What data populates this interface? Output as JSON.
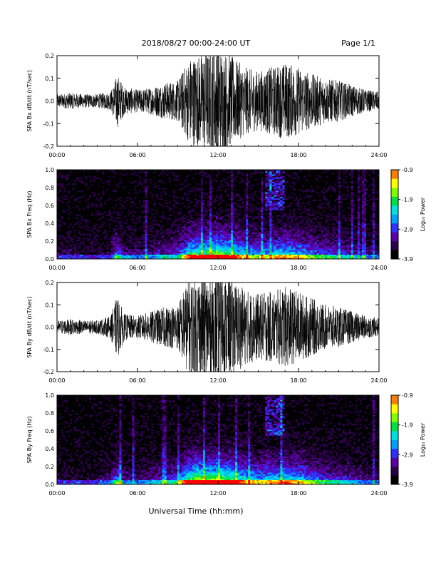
{
  "header": {
    "date_range": "2018/08/27  00:00-24:00 UT",
    "page": "Page 1/1"
  },
  "footer": {
    "xlabel": "Universal Time (hh:mm)"
  },
  "colors": {
    "trace": "#000000",
    "colormap": [
      "#000000",
      "#2a0048",
      "#5a00a6",
      "#3030ff",
      "#00a0ff",
      "#00e0e0",
      "#00e040",
      "#80ff00",
      "#ffff00",
      "#ff8000",
      "#ff0000"
    ]
  },
  "chart_data": [
    {
      "type": "line",
      "id": "bx-timeseries",
      "ylabel": "SPA Bx dB/dt (nT/sec)",
      "x_ticks": [
        "00:00",
        "06:00",
        "12:00",
        "18:00",
        "24:00"
      ],
      "xlim_hours": [
        0,
        24
      ],
      "ylim": [
        -0.2,
        0.2
      ],
      "y_ticks": [
        "-0.2",
        "-0.1",
        "0.0",
        "0.1",
        "0.2"
      ],
      "amplitude_envelope": {
        "hours": [
          0,
          1,
          2,
          3,
          4,
          4.5,
          5,
          6,
          7,
          8,
          9,
          9.5,
          10,
          10.5,
          11,
          12,
          13,
          14,
          15,
          16,
          17,
          18,
          19,
          20,
          21,
          22,
          23,
          24
        ],
        "amplitude": [
          0.03,
          0.035,
          0.03,
          0.03,
          0.04,
          0.12,
          0.06,
          0.05,
          0.06,
          0.08,
          0.09,
          0.15,
          0.2,
          0.2,
          0.22,
          0.24,
          0.2,
          0.15,
          0.13,
          0.15,
          0.17,
          0.15,
          0.12,
          0.1,
          0.09,
          0.07,
          0.05,
          0.04
        ]
      }
    },
    {
      "type": "heatmap",
      "id": "bx-spectrogram",
      "ylabel": "SPA Bx Freq (Hz)",
      "x_ticks": [
        "00:00",
        "06:00",
        "12:00",
        "18:00",
        "24:00"
      ],
      "xlim_hours": [
        0,
        24
      ],
      "ylim": [
        0.0,
        1.0
      ],
      "y_ticks": [
        "0.0",
        "0.2",
        "0.4",
        "0.6",
        "0.8",
        "1.0"
      ],
      "colorbar": {
        "label": "Log₁₀ Power",
        "range": [
          -3.9,
          -0.9
        ],
        "ticks": [
          "-0.9",
          "-1.9",
          "-2.9",
          "-3.9"
        ]
      }
    },
    {
      "type": "line",
      "id": "by-timeseries",
      "ylabel": "SPA By dB/dt (nT/sec)",
      "x_ticks": [
        "00:00",
        "06:00",
        "12:00",
        "18:00",
        "24:00"
      ],
      "xlim_hours": [
        0,
        24
      ],
      "ylim": [
        -0.2,
        0.2
      ],
      "y_ticks": [
        "-0.2",
        "-0.1",
        "0.0",
        "0.1",
        "0.2"
      ],
      "amplitude_envelope": {
        "hours": [
          0,
          1,
          2,
          3,
          4,
          4.5,
          5,
          6,
          7,
          8,
          9,
          9.5,
          10,
          10.5,
          11,
          12,
          13,
          14,
          15,
          16,
          17,
          18,
          19,
          20,
          21,
          22,
          23,
          24
        ],
        "amplitude": [
          0.03,
          0.035,
          0.03,
          0.03,
          0.05,
          0.14,
          0.06,
          0.05,
          0.07,
          0.09,
          0.1,
          0.18,
          0.22,
          0.24,
          0.24,
          0.24,
          0.22,
          0.17,
          0.15,
          0.16,
          0.18,
          0.16,
          0.13,
          0.1,
          0.09,
          0.07,
          0.05,
          0.04
        ]
      }
    },
    {
      "type": "heatmap",
      "id": "by-spectrogram",
      "ylabel": "SPA By Freq (Hz)",
      "x_ticks": [
        "00:00",
        "06:00",
        "12:00",
        "18:00",
        "24:00"
      ],
      "xlim_hours": [
        0,
        24
      ],
      "ylim": [
        0.0,
        1.0
      ],
      "y_ticks": [
        "0.0",
        "0.2",
        "0.4",
        "0.6",
        "0.8",
        "1.0"
      ],
      "colorbar": {
        "label": "Log₁₀ Power",
        "range": [
          -3.9,
          -0.9
        ],
        "ticks": [
          "-0.9",
          "-1.9",
          "-2.9",
          "-3.9"
        ]
      }
    }
  ]
}
